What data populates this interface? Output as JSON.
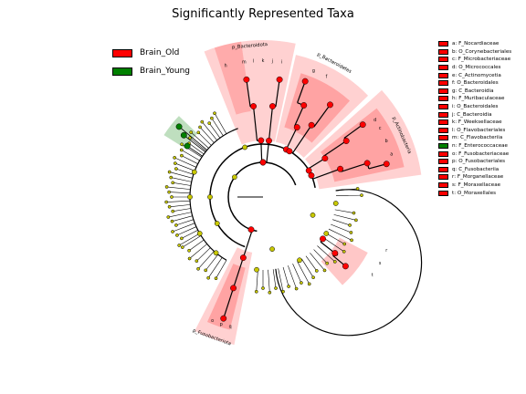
{
  "title": "Significantly Represented Taxa",
  "legend": [
    {
      "label": "Brain_Old",
      "color": "#ff0000"
    },
    {
      "label": "Brain_Young",
      "color": "#008000"
    }
  ],
  "clades": [
    {
      "label": "a: F_Nocardiaceae",
      "group": "Brain_Old"
    },
    {
      "label": "b: O_Corynebacteriales",
      "group": "Brain_Old"
    },
    {
      "label": "c: F_Microbacteriaceae",
      "group": "Brain_Old"
    },
    {
      "label": "d: O_Micrococcales",
      "group": "Brain_Old"
    },
    {
      "label": "e: C_Actinomycetia",
      "group": "Brain_Old"
    },
    {
      "label": "f: O_Bacteroidales",
      "group": "Brain_Old"
    },
    {
      "label": "g: C_Bacteroidia",
      "group": "Brain_Old"
    },
    {
      "label": "h: F_Muribaculaceae",
      "group": "Brain_Old"
    },
    {
      "label": "i: O_Bacteroidales",
      "group": "Brain_Old"
    },
    {
      "label": "j: C_Bacteroidia",
      "group": "Brain_Old"
    },
    {
      "label": "k: F_Weeksellaceae",
      "group": "Brain_Old"
    },
    {
      "label": "l: O_Flavobacteriales",
      "group": "Brain_Old"
    },
    {
      "label": "m: C_Flavobacteriia",
      "group": "Brain_Old"
    },
    {
      "label": "n: F_Enterococcaceae",
      "group": "Brain_Young"
    },
    {
      "label": "o: F_Fusobacteriaceae",
      "group": "Brain_Old"
    },
    {
      "label": "p: O_Fusobacteriales",
      "group": "Brain_Old"
    },
    {
      "label": "q: C_Fusobacteriia",
      "group": "Brain_Old"
    },
    {
      "label": "r: F_Morganellaceae",
      "group": "Brain_Old"
    },
    {
      "label": "s: F_Moraxellaceae",
      "group": "Brain_Old"
    },
    {
      "label": "t: O_Moraxellales",
      "group": "Brain_Old"
    }
  ],
  "phyla": [
    {
      "label": "p_Bacteroidota"
    },
    {
      "label": "p_Bacteroidetes"
    },
    {
      "label": "p_Actinobacteria"
    },
    {
      "label": "p_Fusobacteriota"
    }
  ],
  "sector_letters": [
    "m",
    "l",
    "k",
    "j",
    "i",
    "h",
    "g",
    "f",
    "d",
    "c",
    "b",
    "a",
    "r",
    "s",
    "t",
    "q",
    "p",
    "o"
  ],
  "colors": {
    "node_neutral": "#c8c800",
    "node_old": "#ff0000",
    "node_young": "#008000",
    "shade_old": "#ff0000",
    "shade_young": "#008000",
    "branch": "#000000"
  }
}
